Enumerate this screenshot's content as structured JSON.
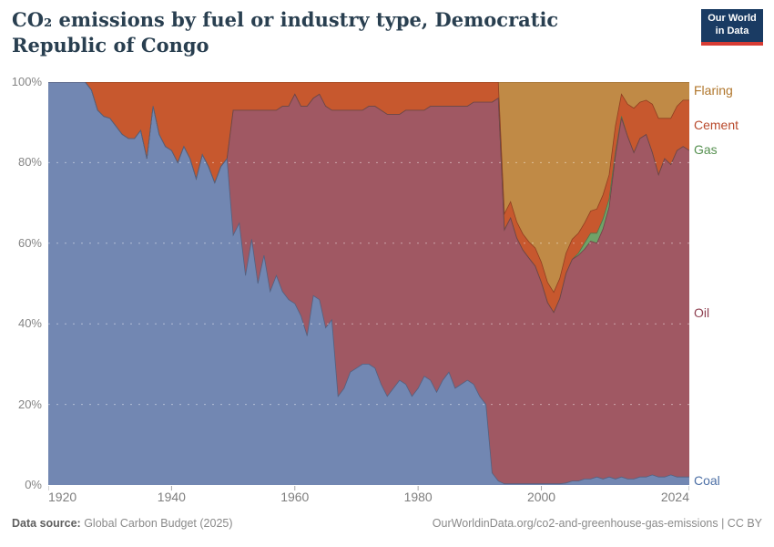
{
  "header": {
    "title": "CO₂ emissions by fuel or industry type, Democratic Republic of Congo",
    "logo_line1": "Our World",
    "logo_line2": "in Data"
  },
  "chart_data": {
    "type": "area",
    "stacked_percent": true,
    "title": "CO₂ emissions by fuel or industry type, Democratic Republic of Congo",
    "xlim": [
      1920,
      2024
    ],
    "ylim": [
      0,
      100
    ],
    "x_step_years": 1,
    "xticks": [
      1920,
      1940,
      1960,
      1980,
      2000,
      2024
    ],
    "yticks": [
      0,
      20,
      40,
      60,
      80,
      100
    ],
    "ytick_suffix": "%",
    "grid": "dashed",
    "legend_position": "right-of-plot",
    "series_order_note": "bottom to top",
    "series": [
      {
        "name": "Coal",
        "color": "#7287B2",
        "label_color": "#4C6FA5",
        "values": [
          100,
          100,
          100,
          100,
          100,
          100,
          100,
          98,
          93,
          91.5,
          91,
          89,
          87,
          86,
          86,
          88,
          81,
          94,
          87,
          84,
          83,
          80,
          84,
          81,
          76,
          82,
          79,
          75,
          79,
          81,
          62,
          65,
          52,
          61,
          50,
          57,
          48,
          52,
          48,
          46,
          45,
          42,
          37,
          47,
          46,
          39,
          41,
          22,
          24,
          28,
          29,
          30,
          30,
          29,
          25,
          22,
          24,
          26,
          25,
          22,
          24,
          27,
          26,
          23,
          26,
          28,
          24,
          25,
          26,
          25,
          22,
          20,
          3,
          1,
          0.3,
          0.3,
          0.3,
          0.3,
          0.3,
          0.3,
          0.3,
          0.3,
          0.3,
          0.3,
          0.5,
          1,
          1,
          1.5,
          1.5,
          2,
          1.5,
          2,
          1.5,
          2,
          1.5,
          1.5,
          2,
          2,
          2.5,
          2,
          2,
          2.5,
          2,
          2,
          2
        ]
      },
      {
        "name": "Oil",
        "color": "#A05863",
        "label_color": "#8E4050",
        "values": [
          0,
          0,
          0,
          0,
          0,
          0,
          0,
          0,
          0,
          0,
          0,
          0,
          0,
          0,
          0,
          0,
          0,
          0,
          0,
          0,
          0,
          0,
          0,
          0,
          0,
          0,
          0,
          0,
          0,
          0,
          31,
          28,
          41,
          32,
          43,
          36,
          45,
          41,
          46,
          48,
          52,
          52,
          57,
          49,
          51,
          55,
          52,
          71,
          69,
          65,
          64,
          63,
          64,
          65,
          68,
          70,
          68,
          66,
          68,
          71,
          69,
          66,
          68,
          71,
          68,
          66,
          70,
          69,
          68,
          70,
          73,
          75,
          92,
          95,
          63,
          66,
          61,
          58,
          56,
          54,
          50,
          45,
          42.5,
          46,
          52,
          55,
          56,
          57,
          59,
          58,
          62,
          67,
          80,
          89,
          85,
          81,
          84,
          85,
          80,
          75,
          79,
          77,
          81,
          82,
          81
        ]
      },
      {
        "name": "Gas",
        "color": "#6FA368",
        "label_color": "#55904F",
        "values": [
          0,
          0,
          0,
          0,
          0,
          0,
          0,
          0,
          0,
          0,
          0,
          0,
          0,
          0,
          0,
          0,
          0,
          0,
          0,
          0,
          0,
          0,
          0,
          0,
          0,
          0,
          0,
          0,
          0,
          0,
          0,
          0,
          0,
          0,
          0,
          0,
          0,
          0,
          0,
          0,
          0,
          0,
          0,
          0,
          0,
          0,
          0,
          0,
          0,
          0,
          0,
          0,
          0,
          0,
          0,
          0,
          0,
          0,
          0,
          0,
          0,
          0,
          0,
          0,
          0,
          0,
          0,
          0,
          0,
          0,
          0,
          0,
          0,
          0,
          0,
          0,
          0,
          0,
          0,
          0,
          0,
          0,
          0,
          0,
          0,
          0,
          0.5,
          1.5,
          2,
          2.5,
          2.5,
          2,
          1,
          0.5,
          0,
          0,
          0,
          0,
          0,
          0,
          0,
          0,
          0,
          0,
          0
        ]
      },
      {
        "name": "Cement",
        "color": "#C7582E",
        "label_color": "#B94A2C",
        "values": [
          0,
          0,
          0,
          0,
          0,
          0,
          0,
          2,
          7,
          8.5,
          9,
          11,
          13,
          14,
          14,
          12,
          19,
          6,
          13,
          16,
          17,
          20,
          16,
          19,
          24,
          18,
          21,
          25,
          21,
          19,
          7,
          7,
          7,
          7,
          7,
          7,
          7,
          7,
          6,
          6,
          3,
          6,
          6,
          4,
          3,
          6,
          7,
          7,
          7,
          7,
          7,
          7,
          6,
          6,
          7,
          8,
          8,
          8,
          7,
          7,
          7,
          7,
          6,
          6,
          6,
          6,
          6,
          6,
          6,
          5,
          5,
          5,
          5,
          4,
          4,
          4,
          4,
          4,
          4,
          4.5,
          5,
          5,
          5,
          5,
          5,
          5,
          5,
          5,
          5.5,
          6,
          6,
          6,
          6.5,
          5.5,
          8,
          11,
          9,
          8.5,
          12,
          14,
          10,
          11.5,
          11,
          11.5,
          12.5
        ]
      },
      {
        "name": "Flaring",
        "color": "#C08A46",
        "label_color": "#B0762B",
        "values": [
          0,
          0,
          0,
          0,
          0,
          0,
          0,
          0,
          0,
          0,
          0,
          0,
          0,
          0,
          0,
          0,
          0,
          0,
          0,
          0,
          0,
          0,
          0,
          0,
          0,
          0,
          0,
          0,
          0,
          0,
          0,
          0,
          0,
          0,
          0,
          0,
          0,
          0,
          0,
          0,
          0,
          0,
          0,
          0,
          0,
          0,
          0,
          0,
          0,
          0,
          0,
          0,
          0,
          0,
          0,
          0,
          0,
          0,
          0,
          0,
          0,
          0,
          0,
          0,
          0,
          0,
          0,
          0,
          0,
          0,
          0,
          0,
          0,
          0,
          32.7,
          29.7,
          34.7,
          37.7,
          39.7,
          41.2,
          44.7,
          49.7,
          52.2,
          48.7,
          42.5,
          39,
          37.5,
          35,
          32,
          31.5,
          28,
          23,
          11,
          3,
          5.5,
          6.5,
          5,
          4.5,
          5.5,
          9,
          9,
          9,
          6,
          4.5,
          4.5
        ]
      }
    ]
  },
  "footer": {
    "source_label": "Data source:",
    "source_value": " Global Carbon Budget (2025)",
    "link": "OurWorldinData.org/co2-and-greenhouse-gas-emissions | CC BY"
  }
}
